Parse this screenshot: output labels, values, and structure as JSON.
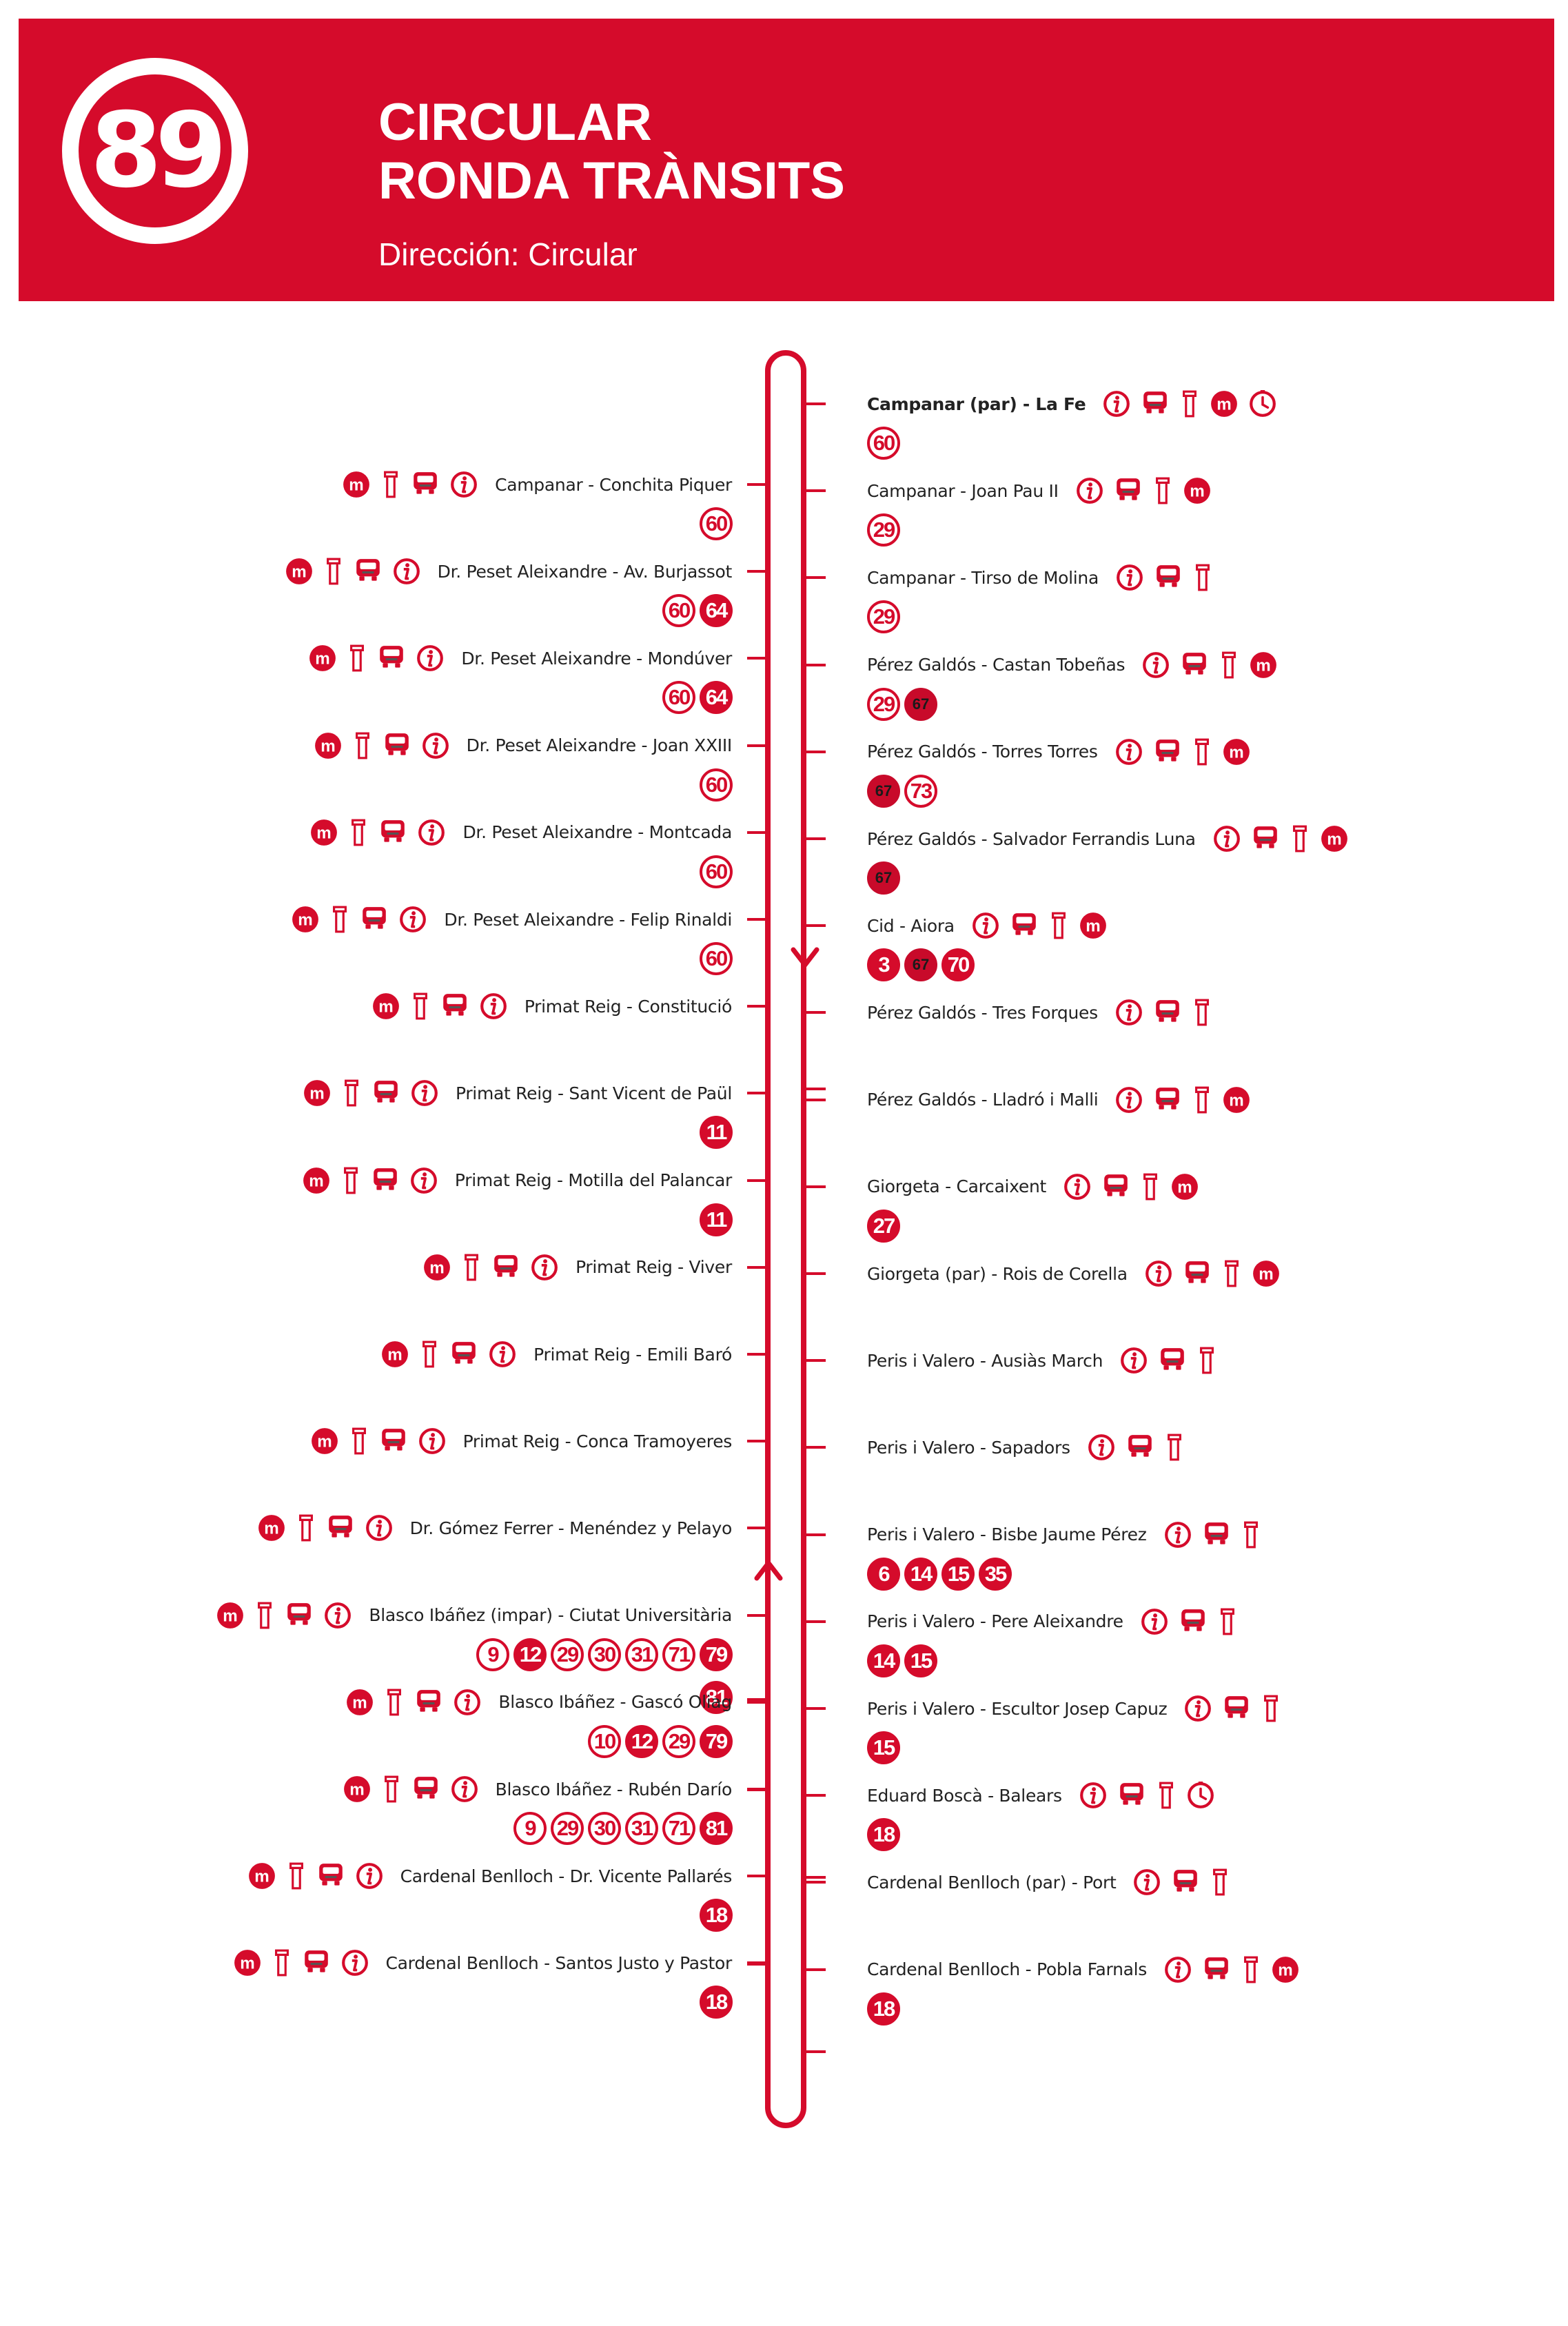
{
  "header": {
    "route_number": "89",
    "title_line_1": "CIRCULAR",
    "title_line_2": "RONDA TRÀNSITS",
    "direction": "Dirección: Circular"
  },
  "colors": {
    "accent": "#d50b2b",
    "dark_badge": "#c80a2a",
    "text": "#222222",
    "background": "#ffffff"
  },
  "right_stops": [
    {
      "name": "Campanar (par) - La Fe",
      "icons": [
        "info-icon",
        "bus-icon",
        "stop-pole-icon",
        "metro-icon",
        "clock-icon"
      ],
      "lines": [
        {
          "num": "60",
          "style": "outline"
        }
      ]
    },
    {
      "name": "Campanar - Joan Pau II",
      "icons": [
        "info-icon",
        "bus-icon",
        "stop-pole-icon",
        "metro-icon"
      ],
      "lines": [
        {
          "num": "29",
          "style": "outline"
        }
      ]
    },
    {
      "name": "Campanar - Tirso de Molina",
      "icons": [
        "info-icon",
        "bus-icon",
        "stop-pole-icon"
      ],
      "lines": [
        {
          "num": "29",
          "style": "outline"
        }
      ]
    },
    {
      "name": "Pérez Galdós - Castan Tobeñas",
      "icons": [
        "info-icon",
        "bus-icon",
        "stop-pole-icon",
        "metro-icon"
      ],
      "lines": [
        {
          "num": "29",
          "style": "outline"
        },
        {
          "num": "67",
          "style": "dark"
        }
      ]
    },
    {
      "name": "Pérez Galdós - Torres Torres",
      "icons": [
        "info-icon",
        "bus-icon",
        "stop-pole-icon",
        "metro-icon"
      ],
      "lines": [
        {
          "num": "67",
          "style": "dark"
        },
        {
          "num": "73",
          "style": "outline"
        }
      ]
    },
    {
      "name": "Pérez Galdós - Salvador Ferrandis Luna",
      "icons": [
        "info-icon",
        "bus-icon",
        "stop-pole-icon",
        "metro-icon"
      ],
      "lines": [
        {
          "num": "67",
          "style": "dark"
        }
      ]
    },
    {
      "name": "Cid - Aiora",
      "icons": [
        "info-icon",
        "bus-icon",
        "stop-pole-icon",
        "metro-icon"
      ],
      "lines": [
        {
          "num": "3",
          "style": "solid"
        },
        {
          "num": "67",
          "style": "dark"
        },
        {
          "num": "70",
          "style": "solid"
        }
      ]
    },
    {
      "name": "Pérez Galdós - Tres Forques",
      "icons": [
        "info-icon",
        "bus-icon",
        "stop-pole-icon"
      ],
      "lines": []
    },
    {
      "name": "Pérez Galdós - Lladró i Malli",
      "icons": [
        "info-icon",
        "bus-icon",
        "stop-pole-icon",
        "metro-icon"
      ],
      "lines": []
    },
    {
      "name": "Giorgeta - Carcaixent",
      "icons": [
        "info-icon",
        "bus-icon",
        "stop-pole-icon",
        "metro-icon"
      ],
      "lines": [
        {
          "num": "27",
          "style": "solid"
        }
      ]
    },
    {
      "name": "Giorgeta (par) - Rois de Corella",
      "icons": [
        "info-icon",
        "bus-icon",
        "stop-pole-icon",
        "metro-icon"
      ],
      "lines": []
    },
    {
      "name": "Peris i Valero - Ausiàs March",
      "icons": [
        "info-icon",
        "bus-icon",
        "stop-pole-icon"
      ],
      "lines": []
    },
    {
      "name": "Peris i Valero - Sapadors",
      "icons": [
        "info-icon",
        "bus-icon",
        "stop-pole-icon"
      ],
      "lines": []
    },
    {
      "name": "Peris i Valero - Bisbe Jaume Pérez",
      "icons": [
        "info-icon",
        "bus-icon",
        "stop-pole-icon"
      ],
      "lines": [
        {
          "num": "6",
          "style": "solid"
        },
        {
          "num": "14",
          "style": "solid"
        },
        {
          "num": "15",
          "style": "solid"
        },
        {
          "num": "35",
          "style": "solid"
        }
      ]
    },
    {
      "name": "Peris i Valero - Pere Aleixandre",
      "icons": [
        "info-icon",
        "bus-icon",
        "stop-pole-icon"
      ],
      "lines": [
        {
          "num": "14",
          "style": "solid"
        },
        {
          "num": "15",
          "style": "solid"
        }
      ]
    },
    {
      "name": "Peris i Valero - Escultor Josep Capuz",
      "icons": [
        "info-icon",
        "bus-icon",
        "stop-pole-icon"
      ],
      "lines": [
        {
          "num": "15",
          "style": "solid"
        }
      ]
    },
    {
      "name": "Eduard Boscà - Balears",
      "icons": [
        "info-icon",
        "bus-icon",
        "stop-pole-icon",
        "clock-icon"
      ],
      "lines": [
        {
          "num": "18",
          "style": "solid"
        }
      ]
    },
    {
      "name": "Cardenal Benlloch (par) - Port",
      "icons": [
        "info-icon",
        "bus-icon",
        "stop-pole-icon"
      ],
      "lines": []
    },
    {
      "name": "Cardenal Benlloch - Pobla Farnals",
      "icons": [
        "info-icon",
        "bus-icon",
        "stop-pole-icon",
        "metro-icon"
      ],
      "lines": [
        {
          "num": "18",
          "style": "solid"
        }
      ]
    }
  ],
  "left_stops": [
    {
      "name": "Campanar - Conchita Piquer",
      "icons": [
        "info-icon",
        "bus-icon",
        "stop-pole-icon",
        "metro-icon"
      ],
      "lines": [
        {
          "num": "60",
          "style": "outline"
        }
      ]
    },
    {
      "name": "Dr. Peset Aleixandre - Av. Burjassot",
      "icons": [
        "info-icon",
        "bus-icon",
        "stop-pole-icon",
        "metro-icon"
      ],
      "lines": [
        {
          "num": "64",
          "style": "solid"
        },
        {
          "num": "60",
          "style": "outline"
        }
      ]
    },
    {
      "name": "Dr. Peset Aleixandre - Mondúver",
      "icons": [
        "info-icon",
        "bus-icon",
        "stop-pole-icon",
        "metro-icon"
      ],
      "lines": [
        {
          "num": "64",
          "style": "solid"
        },
        {
          "num": "60",
          "style": "outline"
        }
      ]
    },
    {
      "name": "Dr. Peset Aleixandre - Joan XXIII",
      "icons": [
        "info-icon",
        "bus-icon",
        "stop-pole-icon",
        "metro-icon"
      ],
      "lines": [
        {
          "num": "60",
          "style": "outline"
        }
      ]
    },
    {
      "name": "Dr. Peset Aleixandre - Montcada",
      "icons": [
        "info-icon",
        "bus-icon",
        "stop-pole-icon",
        "metro-icon"
      ],
      "lines": [
        {
          "num": "60",
          "style": "outline"
        }
      ]
    },
    {
      "name": "Dr. Peset Aleixandre - Felip Rinaldi",
      "icons": [
        "info-icon",
        "bus-icon",
        "stop-pole-icon",
        "metro-icon"
      ],
      "lines": [
        {
          "num": "60",
          "style": "outline"
        }
      ]
    },
    {
      "name": "Primat Reig - Constitució",
      "icons": [
        "info-icon",
        "bus-icon",
        "stop-pole-icon",
        "metro-icon"
      ],
      "lines": []
    },
    {
      "name": "Primat Reig - Sant Vicent de Paül",
      "icons": [
        "info-icon",
        "bus-icon",
        "stop-pole-icon",
        "metro-icon"
      ],
      "lines": [
        {
          "num": "11",
          "style": "solid"
        }
      ]
    },
    {
      "name": "Primat Reig - Motilla del Palancar",
      "icons": [
        "info-icon",
        "bus-icon",
        "stop-pole-icon",
        "metro-icon"
      ],
      "lines": [
        {
          "num": "11",
          "style": "solid"
        }
      ]
    },
    {
      "name": "Primat Reig - Viver",
      "icons": [
        "info-icon",
        "bus-icon",
        "stop-pole-icon",
        "metro-icon"
      ],
      "lines": []
    },
    {
      "name": "Primat Reig - Emili Baró",
      "icons": [
        "info-icon",
        "bus-icon",
        "stop-pole-icon",
        "metro-icon"
      ],
      "lines": []
    },
    {
      "name": "Primat Reig - Conca Tramoyeres",
      "icons": [
        "info-icon",
        "bus-icon",
        "stop-pole-icon",
        "metro-icon"
      ],
      "lines": []
    },
    {
      "name": "Dr. Gómez Ferrer - Menéndez y Pelayo",
      "icons": [
        "info-icon",
        "bus-icon",
        "stop-pole-icon",
        "metro-icon"
      ],
      "lines": []
    },
    {
      "name": "Blasco Ibáñez (impar) - Ciutat Universitària",
      "icons": [
        "info-icon",
        "bus-icon",
        "stop-pole-icon",
        "metro-icon"
      ],
      "lines": [
        {
          "num": "79",
          "style": "solid"
        },
        {
          "num": "71",
          "style": "outline"
        },
        {
          "num": "31",
          "style": "outline"
        },
        {
          "num": "30",
          "style": "outline"
        },
        {
          "num": "29",
          "style": "outline"
        },
        {
          "num": "12",
          "style": "solid"
        },
        {
          "num": "9",
          "style": "outline"
        }
      ],
      "lines2": [
        {
          "num": "81",
          "style": "solid"
        }
      ]
    },
    {
      "name": "Blasco Ibáñez - Gascó Oliag",
      "icons": [
        "info-icon",
        "bus-icon",
        "stop-pole-icon",
        "metro-icon"
      ],
      "lines": [
        {
          "num": "79",
          "style": "solid"
        },
        {
          "num": "29",
          "style": "outline"
        },
        {
          "num": "12",
          "style": "solid"
        },
        {
          "num": "10",
          "style": "outline"
        }
      ]
    },
    {
      "name": "Blasco Ibáñez - Rubén Darío",
      "icons": [
        "info-icon",
        "bus-icon",
        "stop-pole-icon",
        "metro-icon"
      ],
      "lines": [
        {
          "num": "81",
          "style": "solid"
        },
        {
          "num": "71",
          "style": "outline"
        },
        {
          "num": "31",
          "style": "outline"
        },
        {
          "num": "30",
          "style": "outline"
        },
        {
          "num": "29",
          "style": "outline"
        },
        {
          "num": "9",
          "style": "outline"
        }
      ]
    },
    {
      "name": "Cardenal Benlloch - Dr. Vicente Pallarés",
      "icons": [
        "info-icon",
        "bus-icon",
        "stop-pole-icon",
        "metro-icon"
      ],
      "lines": [
        {
          "num": "18",
          "style": "solid"
        }
      ]
    },
    {
      "name": "Cardenal Benlloch - Santos Justo y Pastor",
      "icons": [
        "info-icon",
        "bus-icon",
        "stop-pole-icon",
        "metro-icon"
      ],
      "lines": [
        {
          "num": "18",
          "style": "solid"
        }
      ]
    }
  ]
}
